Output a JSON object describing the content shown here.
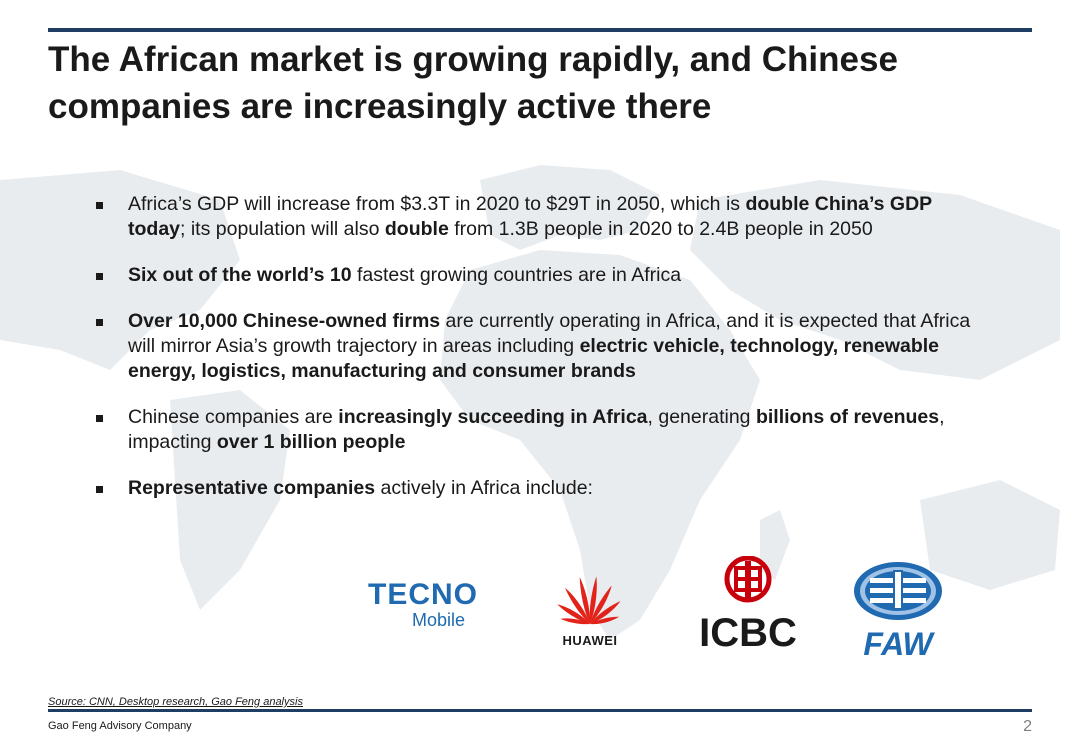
{
  "title": "The African market is growing rapidly, and Chinese companies are increasingly active there",
  "bullets": [
    [
      {
        "t": "Africa’s GDP will increase from $3.3T in 2020 to $29T in 2050, which is ",
        "b": false
      },
      {
        "t": "double China’s GDP today",
        "b": true
      },
      {
        "t": "; its population will also ",
        "b": false
      },
      {
        "t": "double",
        "b": true
      },
      {
        "t": " from 1.3B people in 2020 to 2.4B people in 2050",
        "b": false
      }
    ],
    [
      {
        "t": "Six out of the world’s 10",
        "b": true
      },
      {
        "t": " fastest growing countries are in Africa",
        "b": false
      }
    ],
    [
      {
        "t": "Over 10,000 Chinese-owned firms",
        "b": true
      },
      {
        "t": " are currently operating in Africa, and it is expected that Africa will mirror Asia’s growth trajectory in areas including ",
        "b": false
      },
      {
        "t": "electric vehicle, technology, renewable energy, logistics, manufacturing and consumer brands",
        "b": true
      }
    ],
    [
      {
        "t": "Chinese companies are ",
        "b": false
      },
      {
        "t": "increasingly succeeding in Africa",
        "b": true
      },
      {
        "t": ", generating ",
        "b": false
      },
      {
        "t": "billions of revenues",
        "b": true
      },
      {
        "t": ", impacting ",
        "b": false
      },
      {
        "t": "over 1 billion people",
        "b": true
      }
    ],
    [
      {
        "t": "Representative companies",
        "b": true
      },
      {
        "t": " actively in Africa include:",
        "b": false
      }
    ]
  ],
  "logos": {
    "tecno": {
      "line1": "TECNO",
      "line2": "Mobile",
      "color": "#1f6ab0"
    },
    "huawei": {
      "label": "HUAWEI",
      "color": "#e2231a"
    },
    "icbc": {
      "label": "ICBC",
      "color": "#c7000b"
    },
    "faw": {
      "label": "FAW",
      "color": "#1f6ab0"
    }
  },
  "source": "Source: CNN, Desktop research, Gao Feng analysis",
  "footer": {
    "company": "Gao Feng Advisory Company",
    "page": "2"
  },
  "colors": {
    "accent": "#1f3d63",
    "text": "#1a1a1a"
  }
}
